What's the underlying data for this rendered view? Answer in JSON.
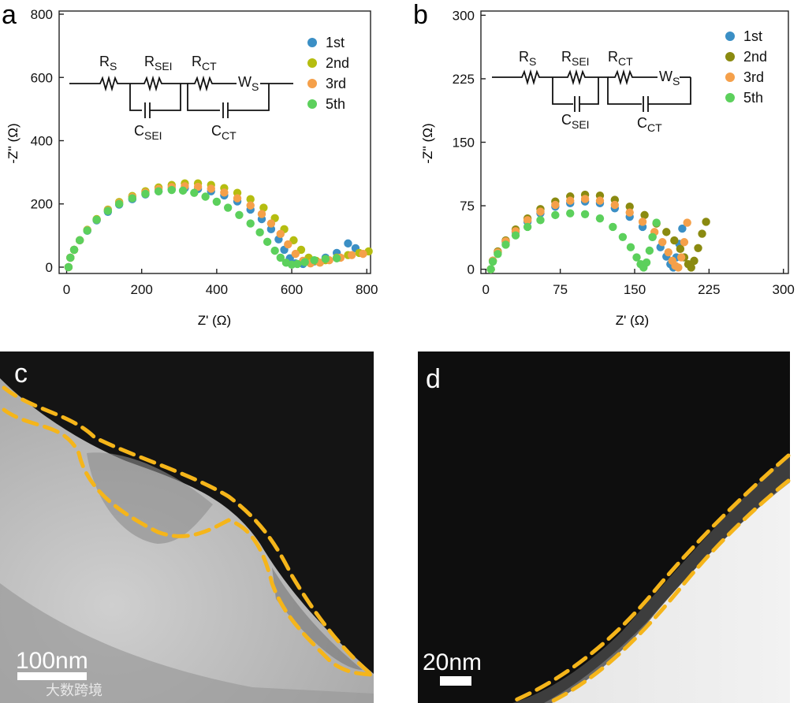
{
  "panels": {
    "a": {
      "letter": "a"
    },
    "b": {
      "letter": "b"
    },
    "c": {
      "letter": "c",
      "scale_bar": "100nm",
      "watermark": "大数跨境"
    },
    "d": {
      "letter": "d",
      "scale_bar": "20nm"
    }
  },
  "colors": {
    "1st": "#3b8fc5",
    "2nd_a": "#b5bd10",
    "2nd_b": "#8a8a10",
    "3rd": "#f5a04a",
    "5th": "#5cd05c",
    "tem_outline": "#f5b51a"
  },
  "circuit": {
    "rs": "R",
    "rs_sub": "S",
    "rsei": "R",
    "rsei_sub": "SEI",
    "rct": "R",
    "rct_sub": "CT",
    "ws": "W",
    "ws_sub": "S",
    "csei": "C",
    "csei_sub": "SEI",
    "cct": "C",
    "cct_sub": "CT"
  },
  "chart_data": [
    {
      "type": "scatter",
      "panel": "a",
      "xlabel": "Z' (Ω)",
      "ylabel": "-Z'' (Ω)",
      "xlim": [
        -20,
        810
      ],
      "ylim": [
        -20,
        810
      ],
      "xticks": [
        0,
        200,
        400,
        600,
        800
      ],
      "yticks": [
        0,
        200,
        400,
        600,
        800
      ],
      "legend": [
        "1st",
        "2nd",
        "3rd",
        "5th"
      ],
      "legend_position": "top-right",
      "series": [
        {
          "name": "1st",
          "color": "#3b8fc5",
          "x": [
            5,
            10,
            20,
            35,
            55,
            80,
            110,
            140,
            175,
            210,
            245,
            280,
            315,
            350,
            385,
            420,
            455,
            490,
            520,
            545,
            565,
            580,
            595,
            610,
            630,
            660,
            690,
            720,
            750,
            770
          ],
          "y": [
            0,
            30,
            55,
            85,
            115,
            148,
            175,
            198,
            215,
            230,
            240,
            246,
            250,
            247,
            240,
            227,
            208,
            182,
            152,
            120,
            88,
            55,
            28,
            12,
            10,
            18,
            30,
            45,
            75,
            60
          ]
        },
        {
          "name": "2nd",
          "color": "#b5bd10",
          "x": [
            5,
            10,
            20,
            35,
            55,
            80,
            110,
            140,
            175,
            210,
            245,
            280,
            315,
            350,
            385,
            420,
            455,
            490,
            525,
            555,
            580,
            605,
            625,
            645,
            665,
            690,
            720,
            750,
            780,
            805
          ],
          "y": [
            0,
            30,
            55,
            85,
            118,
            152,
            182,
            206,
            225,
            240,
            252,
            260,
            265,
            265,
            260,
            250,
            235,
            215,
            188,
            155,
            120,
            85,
            55,
            30,
            20,
            22,
            30,
            38,
            45,
            50
          ]
        },
        {
          "name": "3rd",
          "color": "#f5a04a",
          "x": [
            5,
            10,
            20,
            35,
            55,
            80,
            110,
            140,
            175,
            210,
            245,
            280,
            315,
            350,
            385,
            420,
            455,
            490,
            520,
            545,
            570,
            590,
            610,
            630,
            650,
            675,
            700,
            730,
            760,
            790
          ],
          "y": [
            0,
            30,
            55,
            85,
            117,
            150,
            180,
            203,
            222,
            236,
            247,
            253,
            256,
            254,
            248,
            236,
            218,
            195,
            168,
            138,
            105,
            72,
            42,
            20,
            12,
            14,
            22,
            30,
            38,
            42
          ]
        },
        {
          "name": "5th",
          "color": "#5cd05c",
          "x": [
            5,
            10,
            20,
            35,
            55,
            80,
            110,
            140,
            175,
            210,
            245,
            280,
            310,
            340,
            370,
            400,
            430,
            460,
            490,
            515,
            535,
            555,
            570,
            585,
            600,
            615,
            635,
            660,
            690,
            720
          ],
          "y": [
            0,
            30,
            55,
            85,
            116,
            150,
            178,
            200,
            218,
            232,
            240,
            244,
            242,
            235,
            223,
            207,
            188,
            165,
            138,
            110,
            80,
            52,
            30,
            14,
            8,
            10,
            16,
            22,
            26,
            28
          ]
        }
      ]
    },
    {
      "type": "scatter",
      "panel": "b",
      "xlabel": "Z' (Ω)",
      "ylabel": "-Z'' (Ω)",
      "xlim": [
        -5,
        305
      ],
      "ylim": [
        -5,
        305
      ],
      "xticks": [
        0,
        75,
        150,
        225,
        300
      ],
      "yticks": [
        0,
        75,
        150,
        225,
        300
      ],
      "legend": [
        "1st",
        "2nd",
        "3rd",
        "5th"
      ],
      "legend_position": "top-right",
      "series": [
        {
          "name": "1st",
          "color": "#3b8fc5",
          "x": [
            5,
            7,
            12,
            20,
            30,
            42,
            55,
            70,
            85,
            100,
            115,
            130,
            145,
            158,
            168,
            176,
            182,
            186,
            189,
            192,
            195,
            198
          ],
          "y": [
            0,
            10,
            20,
            32,
            44,
            56,
            66,
            74,
            78,
            80,
            78,
            72,
            62,
            50,
            38,
            26,
            15,
            6,
            2,
            14,
            30,
            48
          ]
        },
        {
          "name": "2nd",
          "color": "#8a8a10",
          "x": [
            5,
            7,
            12,
            20,
            30,
            42,
            55,
            70,
            85,
            100,
            115,
            130,
            145,
            160,
            172,
            182,
            190,
            196,
            200,
            204,
            207,
            210,
            214,
            218,
            222
          ],
          "y": [
            0,
            10,
            21,
            34,
            47,
            60,
            71,
            80,
            86,
            88,
            87,
            82,
            74,
            64,
            54,
            44,
            34,
            24,
            14,
            6,
            2,
            10,
            25,
            42,
            56
          ]
        },
        {
          "name": "3rd",
          "color": "#f5a04a",
          "x": [
            5,
            7,
            12,
            20,
            30,
            42,
            55,
            70,
            85,
            100,
            115,
            130,
            145,
            158,
            170,
            178,
            184,
            188,
            191,
            194,
            197,
            200,
            203
          ],
          "y": [
            0,
            10,
            20,
            33,
            45,
            58,
            68,
            76,
            81,
            83,
            81,
            76,
            67,
            56,
            44,
            32,
            20,
            10,
            4,
            2,
            14,
            32,
            55
          ]
        },
        {
          "name": "5th",
          "color": "#5cd05c",
          "x": [
            5,
            7,
            12,
            20,
            30,
            42,
            55,
            70,
            85,
            100,
            115,
            128,
            138,
            146,
            152,
            156,
            159,
            162,
            165,
            168,
            172
          ],
          "y": [
            0,
            9,
            18,
            29,
            40,
            50,
            58,
            64,
            66,
            65,
            60,
            50,
            38,
            26,
            14,
            6,
            2,
            8,
            22,
            38,
            55
          ]
        }
      ]
    }
  ]
}
